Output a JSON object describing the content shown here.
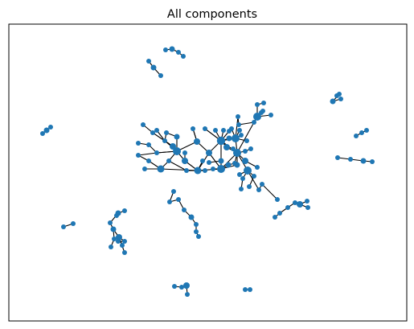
{
  "figure": {
    "title": "All components"
  },
  "colors": {
    "node": "#1f77b4",
    "edge": "#000000",
    "frame": "#000000",
    "background": "#ffffff"
  },
  "graph": {
    "type": "network",
    "axes_visible": false,
    "node_count": 157
  }
}
